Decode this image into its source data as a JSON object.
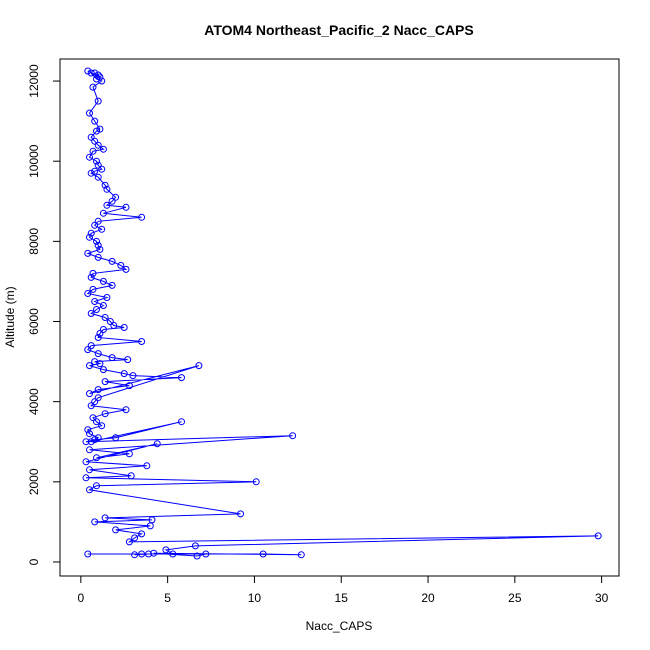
{
  "chart_data": {
    "type": "scatter",
    "title": "ATOM4 Northeast_Pacific_2 Nacc_CAPS",
    "xlabel": "Nacc_CAPS",
    "ylabel": "Altitude (m)",
    "xlim": [
      -1.2,
      31.0
    ],
    "ylim": [
      -350,
      12550
    ],
    "xticks": [
      0,
      5,
      10,
      15,
      20,
      25,
      30
    ],
    "yticks": [
      0,
      2000,
      4000,
      6000,
      8000,
      10000,
      12000
    ],
    "grid": false,
    "legend": "none",
    "color": "#0000ff",
    "series": [
      {
        "x": [
          0.8,
          1.0,
          1.1,
          0.4,
          0.6,
          0.9,
          1.2,
          0.7,
          1.0,
          0.5,
          0.8,
          1.1,
          0.9,
          0.6,
          0.8,
          1.0,
          1.3,
          0.7,
          0.5,
          0.9,
          1.0,
          1.2,
          0.8,
          0.6,
          1.0,
          1.4,
          1.5,
          2.0,
          1.8,
          1.5,
          2.6,
          1.3,
          3.5,
          1.0,
          0.8,
          1.2,
          0.6,
          0.5,
          0.9,
          1.0,
          1.1,
          0.4,
          1.0,
          1.8,
          2.3,
          2.6,
          0.7,
          0.6,
          1.3,
          1.8,
          0.7,
          0.4,
          1.5,
          0.8,
          1.3,
          0.9,
          0.6,
          1.4,
          1.7,
          1.9,
          2.5,
          1.3,
          1.1,
          1.0,
          3.5,
          0.6,
          0.4,
          1.0,
          1.8,
          2.7,
          0.8,
          1.1,
          0.5,
          1.3,
          2.5,
          3.0,
          5.8,
          1.4,
          2.8,
          1.0,
          0.5,
          6.8,
          1.0,
          0.8,
          0.6,
          2.6,
          1.4,
          0.7,
          0.9,
          1.2,
          0.4,
          0.5,
          1.0,
          0.6,
          5.8,
          2.0,
          0.8,
          0.3,
          12.2,
          0.5,
          2.8,
          0.9,
          4.4,
          0.3,
          3.8,
          0.5,
          2.9,
          0.3,
          10.1,
          0.9,
          0.5,
          9.2,
          1.4,
          4.1,
          0.8,
          4.0,
          2.0,
          3.5,
          3.1,
          2.8,
          29.8,
          6.6,
          4.9,
          5.3,
          3.9,
          3.1,
          3.5,
          10.5,
          12.7,
          4.2,
          6.7,
          7.2,
          0.4
        ],
        "y": [
          12200,
          12150,
          12100,
          12250,
          12200,
          12050,
          12000,
          11850,
          11500,
          11200,
          11000,
          10800,
          10750,
          10600,
          10500,
          10400,
          10300,
          10250,
          10100,
          10000,
          9900,
          9800,
          9750,
          9700,
          9600,
          9400,
          9300,
          9100,
          9000,
          8900,
          8850,
          8700,
          8600,
          8500,
          8400,
          8300,
          8200,
          8100,
          8000,
          7900,
          7800,
          7700,
          7600,
          7500,
          7400,
          7300,
          7200,
          7100,
          7000,
          6900,
          6800,
          6700,
          6600,
          6500,
          6400,
          6300,
          6200,
          6100,
          6000,
          5900,
          5850,
          5800,
          5700,
          5600,
          5500,
          5400,
          5300,
          5200,
          5100,
          5050,
          5000,
          4950,
          4900,
          4800,
          4700,
          4650,
          4600,
          4500,
          4400,
          4300,
          4200,
          4900,
          4100,
          4000,
          3900,
          3800,
          3700,
          3600,
          3500,
          3400,
          3300,
          3200,
          3100,
          3000,
          3500,
          3100,
          3050,
          3000,
          3150,
          2800,
          2700,
          2600,
          2950,
          2500,
          2400,
          2300,
          2150,
          2100,
          2000,
          1900,
          1800,
          1200,
          1100,
          1050,
          1000,
          900,
          800,
          700,
          600,
          500,
          650,
          400,
          300,
          200,
          200,
          180,
          200,
          200,
          180,
          220,
          150,
          200,
          200
        ]
      }
    ]
  }
}
